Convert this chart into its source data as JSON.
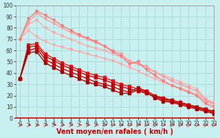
{
  "title": "",
  "xlabel": "Vent moyen/en rafales ( km/h )",
  "ylabel": "",
  "background_color": "#c8f0f0",
  "grid_color": "#a8d8d8",
  "xlim": [
    -0.5,
    23
  ],
  "ylim": [
    0,
    100
  ],
  "xticks": [
    0,
    1,
    2,
    3,
    4,
    5,
    6,
    7,
    8,
    9,
    10,
    11,
    12,
    13,
    14,
    15,
    16,
    17,
    18,
    19,
    20,
    21,
    22,
    23
  ],
  "yticks": [
    0,
    10,
    20,
    30,
    40,
    50,
    60,
    70,
    80,
    90,
    100
  ],
  "series": [
    {
      "color": "#ffaaaa",
      "linewidth": 1.0,
      "marker": "v",
      "markersize": 2.5,
      "x": [
        0,
        1,
        2,
        3,
        4,
        5,
        6,
        7,
        8,
        9,
        10,
        11,
        12,
        13,
        14,
        15,
        16,
        17,
        18,
        19,
        20,
        21,
        22,
        23
      ],
      "y": [
        70,
        78,
        72,
        68,
        65,
        63,
        61,
        59,
        57,
        55,
        53,
        51,
        48,
        45,
        42,
        38,
        35,
        32,
        29,
        27,
        24,
        21,
        15,
        12
      ]
    },
    {
      "color": "#ffaaaa",
      "linewidth": 1.0,
      "marker": "v",
      "markersize": 2.5,
      "x": [
        0,
        1,
        2,
        3,
        4,
        5,
        6,
        7,
        8,
        9,
        10,
        11,
        12,
        13,
        14,
        15,
        16,
        17,
        18,
        19,
        20,
        21,
        22,
        23
      ],
      "y": [
        70,
        83,
        87,
        80,
        76,
        73,
        70,
        67,
        64,
        62,
        60,
        57,
        54,
        51,
        48,
        44,
        41,
        38,
        35,
        32,
        29,
        26,
        17,
        14
      ]
    },
    {
      "color": "#ff9999",
      "linewidth": 1.0,
      "marker": "v",
      "markersize": 2.5,
      "x": [
        0,
        1,
        2,
        3,
        4,
        5,
        6,
        7,
        8,
        9,
        10,
        11,
        12,
        13,
        14,
        15,
        16,
        17,
        18,
        19,
        20,
        21,
        22,
        23
      ],
      "y": [
        70,
        85,
        93,
        88,
        84,
        80,
        76,
        73,
        70,
        67,
        64,
        60,
        57,
        50,
        48,
        46,
        41,
        37,
        33,
        30,
        27,
        24,
        16,
        13
      ]
    },
    {
      "color": "#ff7777",
      "linewidth": 1.0,
      "marker": "v",
      "markersize": 2.5,
      "x": [
        0,
        1,
        2,
        3,
        4,
        5,
        6,
        7,
        8,
        9,
        10,
        11,
        12,
        13,
        14,
        15,
        16,
        17,
        18,
        19,
        20,
        21,
        22,
        23
      ],
      "y": [
        70,
        88,
        95,
        91,
        87,
        82,
        78,
        74,
        71,
        68,
        64,
        59,
        55,
        48,
        50,
        43,
        38,
        33,
        29,
        26,
        23,
        20,
        13,
        10
      ]
    },
    {
      "color": "#ee1111",
      "linewidth": 1.0,
      "marker": "s",
      "markersize": 2.5,
      "x": [
        0,
        1,
        2,
        3,
        4,
        5,
        6,
        7,
        8,
        9,
        10,
        11,
        12,
        13,
        14,
        15,
        16,
        17,
        18,
        19,
        20,
        21,
        22,
        23
      ],
      "y": [
        35,
        65,
        66,
        57,
        53,
        49,
        46,
        43,
        40,
        38,
        36,
        33,
        30,
        28,
        26,
        24,
        20,
        18,
        16,
        14,
        12,
        10,
        8,
        6
      ]
    },
    {
      "color": "#cc0000",
      "linewidth": 1.0,
      "marker": "s",
      "markersize": 2.5,
      "x": [
        0,
        1,
        2,
        3,
        4,
        5,
        6,
        7,
        8,
        9,
        10,
        11,
        12,
        13,
        14,
        15,
        16,
        17,
        18,
        19,
        20,
        21,
        22,
        23
      ],
      "y": [
        35,
        63,
        64,
        55,
        51,
        47,
        44,
        41,
        38,
        36,
        34,
        31,
        28,
        26,
        24,
        22,
        19,
        16,
        15,
        13,
        11,
        9,
        7,
        5
      ]
    },
    {
      "color": "#cc0000",
      "linewidth": 1.0,
      "marker": "s",
      "markersize": 2.5,
      "x": [
        0,
        1,
        2,
        3,
        4,
        5,
        6,
        7,
        8,
        9,
        10,
        11,
        12,
        13,
        14,
        15,
        16,
        17,
        18,
        19,
        20,
        21,
        22,
        23
      ],
      "y": [
        35,
        60,
        62,
        52,
        48,
        44,
        41,
        38,
        35,
        32,
        30,
        28,
        25,
        23,
        27,
        24,
        20,
        17,
        16,
        14,
        12,
        10,
        8,
        6
      ]
    },
    {
      "color": "#aa0000",
      "linewidth": 1.0,
      "marker": "s",
      "markersize": 2.5,
      "x": [
        0,
        1,
        2,
        3,
        4,
        5,
        6,
        7,
        8,
        9,
        10,
        11,
        12,
        13,
        14,
        15,
        16,
        17,
        18,
        19,
        20,
        21,
        22,
        23
      ],
      "y": [
        35,
        58,
        59,
        49,
        45,
        41,
        38,
        35,
        32,
        30,
        28,
        25,
        22,
        22,
        25,
        23,
        18,
        15,
        14,
        12,
        10,
        8,
        6,
        4
      ]
    }
  ],
  "arrow_color": "#dd0000",
  "xlabel_color": "#cc0000",
  "xlabel_fontsize": 7,
  "tick_fontsize": 5.5
}
